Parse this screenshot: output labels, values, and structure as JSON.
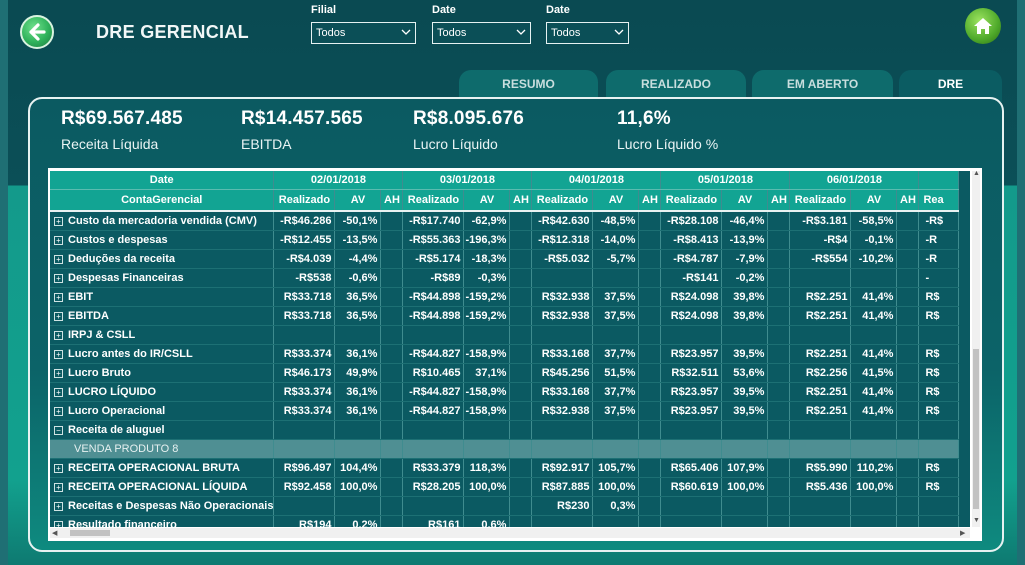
{
  "header": {
    "title": "DRE GERENCIAL"
  },
  "filters": [
    {
      "label": "Filial",
      "value": "Todos"
    },
    {
      "label": "Date",
      "value": "Todos"
    },
    {
      "label": "Date",
      "value": "Todos"
    }
  ],
  "tabs": [
    "RESUMO",
    "REALIZADO",
    "EM ABERTO",
    "DRE"
  ],
  "kpis": [
    {
      "value": "R$69.567.485",
      "label": "Receita Líquida"
    },
    {
      "value": "R$14.457.565",
      "label": "EBITDA"
    },
    {
      "value": "R$8.095.676",
      "label": "Lucro Líquido"
    },
    {
      "value": "11,6%",
      "label": "Lucro Líquido %"
    }
  ],
  "table": {
    "corner_top": "Date",
    "corner_bottom": "ContaGerencial",
    "dates": [
      "02/01/2018",
      "03/01/2018",
      "04/01/2018",
      "05/01/2018",
      "06/01/2018"
    ],
    "subcols": [
      "Realizado",
      "AV",
      "AH"
    ],
    "partial_subcol": "Rea",
    "rows": [
      {
        "name": "Custo da mercadoria vendida (CMV)",
        "icon": "+",
        "v": [
          [
            "-R$46.286",
            "-50,1%"
          ],
          [
            "-R$17.740",
            "-62,9%"
          ],
          [
            "-R$42.630",
            "-48,5%"
          ],
          [
            "-R$28.108",
            "-46,4%"
          ],
          [
            "-R$3.181",
            "-58,5%"
          ]
        ],
        "p": "-R$"
      },
      {
        "name": "Custos e despesas",
        "icon": "+",
        "v": [
          [
            "-R$12.455",
            "-13,5%"
          ],
          [
            "-R$55.363",
            "-196,3%"
          ],
          [
            "-R$12.318",
            "-14,0%"
          ],
          [
            "-R$8.413",
            "-13,9%"
          ],
          [
            "-R$4",
            "-0,1%"
          ]
        ],
        "p": "-R"
      },
      {
        "name": "Deduções da receita",
        "icon": "+",
        "v": [
          [
            "-R$4.039",
            "-4,4%"
          ],
          [
            "-R$5.174",
            "-18,3%"
          ],
          [
            "-R$5.032",
            "-5,7%"
          ],
          [
            "-R$4.787",
            "-7,9%"
          ],
          [
            "-R$554",
            "-10,2%"
          ]
        ],
        "p": "-R"
      },
      {
        "name": "Despesas Financeiras",
        "icon": "+",
        "v": [
          [
            "-R$538",
            "-0,6%"
          ],
          [
            "-R$89",
            "-0,3%"
          ],
          [
            "",
            ""
          ],
          [
            "-R$141",
            "-0,2%"
          ],
          [
            "",
            ""
          ]
        ],
        "p": "-"
      },
      {
        "name": "EBIT",
        "icon": "+",
        "v": [
          [
            "R$33.718",
            "36,5%"
          ],
          [
            "-R$44.898",
            "-159,2%"
          ],
          [
            "R$32.938",
            "37,5%"
          ],
          [
            "R$24.098",
            "39,8%"
          ],
          [
            "R$2.251",
            "41,4%"
          ]
        ],
        "p": "R$"
      },
      {
        "name": "EBITDA",
        "icon": "+",
        "v": [
          [
            "R$33.718",
            "36,5%"
          ],
          [
            "-R$44.898",
            "-159,2%"
          ],
          [
            "R$32.938",
            "37,5%"
          ],
          [
            "R$24.098",
            "39,8%"
          ],
          [
            "R$2.251",
            "41,4%"
          ]
        ],
        "p": "R$"
      },
      {
        "name": "IRPJ & CSLL",
        "icon": "+",
        "v": [
          [
            "",
            ""
          ],
          [
            "",
            ""
          ],
          [
            "",
            ""
          ],
          [
            "",
            ""
          ],
          [
            "",
            ""
          ]
        ],
        "p": ""
      },
      {
        "name": "Lucro antes do IR/CSLL",
        "icon": "+",
        "v": [
          [
            "R$33.374",
            "36,1%"
          ],
          [
            "-R$44.827",
            "-158,9%"
          ],
          [
            "R$33.168",
            "37,7%"
          ],
          [
            "R$23.957",
            "39,5%"
          ],
          [
            "R$2.251",
            "41,4%"
          ]
        ],
        "p": "R$"
      },
      {
        "name": "Lucro Bruto",
        "icon": "+",
        "v": [
          [
            "R$46.173",
            "49,9%"
          ],
          [
            "R$10.465",
            "37,1%"
          ],
          [
            "R$45.256",
            "51,5%"
          ],
          [
            "R$32.511",
            "53,6%"
          ],
          [
            "R$2.256",
            "41,5%"
          ]
        ],
        "p": "R$"
      },
      {
        "name": "LUCRO LÍQUIDO",
        "icon": "+",
        "v": [
          [
            "R$33.374",
            "36,1%"
          ],
          [
            "-R$44.827",
            "-158,9%"
          ],
          [
            "R$33.168",
            "37,7%"
          ],
          [
            "R$23.957",
            "39,5%"
          ],
          [
            "R$2.251",
            "41,4%"
          ]
        ],
        "p": "R$"
      },
      {
        "name": "Lucro Operacional",
        "icon": "+",
        "v": [
          [
            "R$33.374",
            "36,1%"
          ],
          [
            "-R$44.827",
            "-158,9%"
          ],
          [
            "R$32.938",
            "37,5%"
          ],
          [
            "R$23.957",
            "39,5%"
          ],
          [
            "R$2.251",
            "41,4%"
          ]
        ],
        "p": "R$"
      },
      {
        "name": "Receita de aluguel",
        "icon": "−",
        "v": [
          [
            "",
            ""
          ],
          [
            "",
            ""
          ],
          [
            "",
            ""
          ],
          [
            "",
            ""
          ],
          [
            "",
            ""
          ]
        ],
        "p": ""
      },
      {
        "name": "VENDA PRODUTO 8",
        "icon": "",
        "sub": true,
        "v": [
          [
            "",
            ""
          ],
          [
            "",
            ""
          ],
          [
            "",
            ""
          ],
          [
            "",
            ""
          ],
          [
            "",
            ""
          ]
        ],
        "p": ""
      },
      {
        "name": "RECEITA OPERACIONAL BRUTA",
        "icon": "+",
        "v": [
          [
            "R$96.497",
            "104,4%"
          ],
          [
            "R$33.379",
            "118,3%"
          ],
          [
            "R$92.917",
            "105,7%"
          ],
          [
            "R$65.406",
            "107,9%"
          ],
          [
            "R$5.990",
            "110,2%"
          ]
        ],
        "p": "R$"
      },
      {
        "name": "RECEITA OPERACIONAL LÍQUIDA",
        "icon": "+",
        "v": [
          [
            "R$92.458",
            "100,0%"
          ],
          [
            "R$28.205",
            "100,0%"
          ],
          [
            "R$87.885",
            "100,0%"
          ],
          [
            "R$60.619",
            "100,0%"
          ],
          [
            "R$5.436",
            "100,0%"
          ]
        ],
        "p": "R$"
      },
      {
        "name": "Receitas e Despesas Não Operacionais",
        "icon": "+",
        "v": [
          [
            "",
            ""
          ],
          [
            "",
            ""
          ],
          [
            "R$230",
            "0,3%"
          ],
          [
            "",
            ""
          ],
          [
            "",
            ""
          ]
        ],
        "p": ""
      },
      {
        "name": "Resultado financeiro",
        "icon": "+",
        "v": [
          [
            "R$194",
            "0,2%"
          ],
          [
            "R$161",
            "0,6%"
          ],
          [
            "",
            ""
          ],
          [
            "",
            ""
          ],
          [
            "",
            ""
          ]
        ],
        "p": ""
      }
    ]
  }
}
